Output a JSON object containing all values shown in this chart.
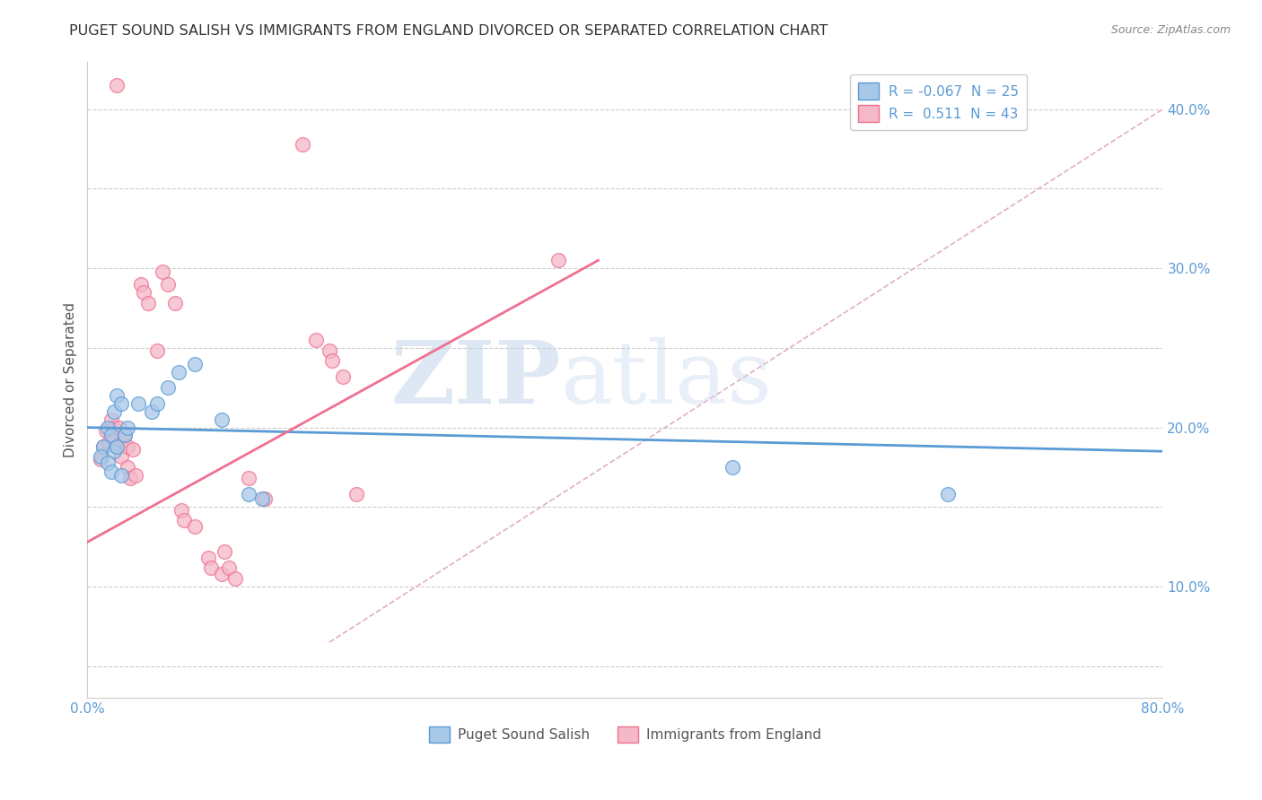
{
  "title": "PUGET SOUND SALISH VS IMMIGRANTS FROM ENGLAND DIVORCED OR SEPARATED CORRELATION CHART",
  "source": "Source: ZipAtlas.com",
  "ylabel": "Divorced or Separated",
  "xlim": [
    0.0,
    0.8
  ],
  "ylim": [
    0.03,
    0.43
  ],
  "x_ticks": [
    0.0,
    0.1,
    0.2,
    0.3,
    0.4,
    0.5,
    0.6,
    0.7,
    0.8
  ],
  "y_ticks": [
    0.05,
    0.1,
    0.15,
    0.2,
    0.25,
    0.3,
    0.35,
    0.4
  ],
  "legend_entries": [
    {
      "label": "R = -0.067  N = 25"
    },
    {
      "label": "R =  0.511  N = 43"
    }
  ],
  "bottom_legend": [
    "Puget Sound Salish",
    "Immigrants from England"
  ],
  "watermark_zip": "ZIP",
  "watermark_atlas": "atlas",
  "blue_scatter": [
    [
      0.02,
      0.21
    ],
    [
      0.022,
      0.22
    ],
    [
      0.025,
      0.215
    ],
    [
      0.015,
      0.2
    ],
    [
      0.018,
      0.195
    ],
    [
      0.012,
      0.188
    ],
    [
      0.02,
      0.185
    ],
    [
      0.022,
      0.188
    ],
    [
      0.028,
      0.195
    ],
    [
      0.01,
      0.182
    ],
    [
      0.015,
      0.178
    ],
    [
      0.018,
      0.172
    ],
    [
      0.025,
      0.17
    ],
    [
      0.03,
      0.2
    ],
    [
      0.038,
      0.215
    ],
    [
      0.048,
      0.21
    ],
    [
      0.052,
      0.215
    ],
    [
      0.06,
      0.225
    ],
    [
      0.068,
      0.235
    ],
    [
      0.08,
      0.24
    ],
    [
      0.1,
      0.205
    ],
    [
      0.12,
      0.158
    ],
    [
      0.13,
      0.155
    ],
    [
      0.48,
      0.175
    ],
    [
      0.64,
      0.158
    ]
  ],
  "pink_scatter": [
    [
      0.01,
      0.18
    ],
    [
      0.012,
      0.188
    ],
    [
      0.014,
      0.198
    ],
    [
      0.016,
      0.19
    ],
    [
      0.018,
      0.205
    ],
    [
      0.02,
      0.2
    ],
    [
      0.02,
      0.192
    ],
    [
      0.022,
      0.188
    ],
    [
      0.024,
      0.2
    ],
    [
      0.025,
      0.192
    ],
    [
      0.025,
      0.182
    ],
    [
      0.028,
      0.195
    ],
    [
      0.03,
      0.188
    ],
    [
      0.03,
      0.175
    ],
    [
      0.032,
      0.168
    ],
    [
      0.034,
      0.186
    ],
    [
      0.036,
      0.17
    ],
    [
      0.04,
      0.29
    ],
    [
      0.042,
      0.285
    ],
    [
      0.045,
      0.278
    ],
    [
      0.052,
      0.248
    ],
    [
      0.056,
      0.298
    ],
    [
      0.06,
      0.29
    ],
    [
      0.065,
      0.278
    ],
    [
      0.07,
      0.148
    ],
    [
      0.072,
      0.142
    ],
    [
      0.08,
      0.138
    ],
    [
      0.09,
      0.118
    ],
    [
      0.092,
      0.112
    ],
    [
      0.1,
      0.108
    ],
    [
      0.102,
      0.122
    ],
    [
      0.105,
      0.112
    ],
    [
      0.11,
      0.105
    ],
    [
      0.12,
      0.168
    ],
    [
      0.132,
      0.155
    ],
    [
      0.16,
      0.378
    ],
    [
      0.17,
      0.255
    ],
    [
      0.18,
      0.248
    ],
    [
      0.182,
      0.242
    ],
    [
      0.19,
      0.232
    ],
    [
      0.2,
      0.158
    ],
    [
      0.022,
      0.415
    ],
    [
      0.35,
      0.305
    ]
  ],
  "blue_line": {
    "x0": 0.0,
    "x1": 0.8,
    "y0": 0.2,
    "y1": 0.185
  },
  "pink_line": {
    "x0": 0.0,
    "x1": 0.38,
    "y0": 0.128,
    "y1": 0.305
  },
  "dashed_line": {
    "x0": 0.18,
    "x1": 0.8,
    "y0": 0.065,
    "y1": 0.4
  },
  "blue_color": "#5b9bd5",
  "pink_color": "#f07090",
  "blue_fill": "#a8c8e8",
  "pink_fill": "#f4b8c8",
  "dashed_color": "#e0b0c0",
  "background_color": "#ffffff",
  "grid_color": "#cccccc"
}
